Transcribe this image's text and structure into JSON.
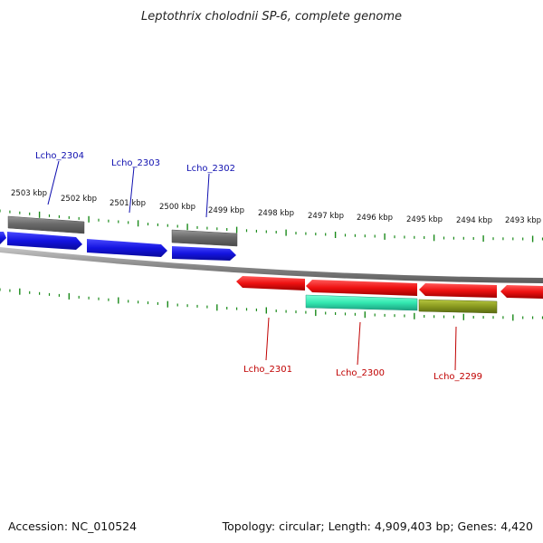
{
  "title": "Leptothrix cholodnii SP-6, complete genome",
  "footer": {
    "accession": "Accession: NC_010524",
    "summary": "Topology: circular; Length: 4,909,403 bp; Genes: 4,420"
  },
  "ticks": [
    "2503 kbp",
    "2502 kbp",
    "2501 kbp",
    "2500 kbp",
    "2499 kbp",
    "2498 kbp",
    "2497 kbp",
    "2496 kbp",
    "2495 kbp",
    "2494 kbp",
    "2493 kbp"
  ],
  "genes": {
    "forward_labels": [
      "Lcho_2304",
      "Lcho_2303",
      "Lcho_2302"
    ],
    "reverse_labels": [
      "Lcho_2301",
      "Lcho_2300",
      "Lcho_2299"
    ]
  },
  "colors": {
    "forward_cds": "#1414e0",
    "reverse_cds": "#ee1111",
    "forward_gene_bar": "#6e6e6e",
    "teal_feature": "#33e8b0",
    "olive_feature": "#8a9a20",
    "backbone": "#8a8a8a",
    "tick_marks": "#1a8a1a"
  }
}
